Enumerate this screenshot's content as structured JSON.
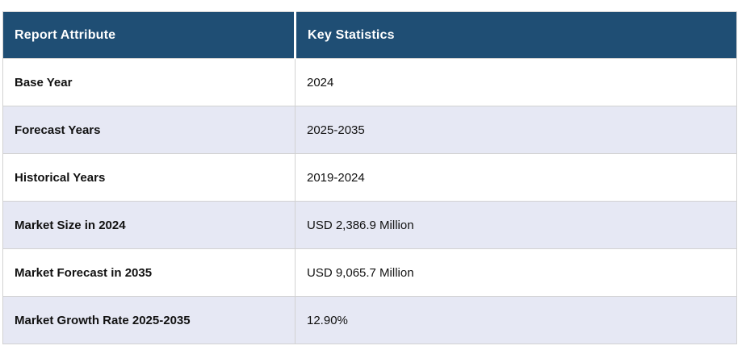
{
  "theme": {
    "header_bg": "#1f4e74",
    "header_text": "#ffffff",
    "header_divider": "#ffffff",
    "stripe_bg": "#e6e8f4",
    "row_bg": "#ffffff",
    "border_color": "#d2d2d2",
    "text_color": "#111111"
  },
  "chart_data": {
    "type": "table",
    "columns": [
      "Report Attribute",
      "Key Statistics"
    ],
    "rows": [
      [
        "Base Year",
        "2024"
      ],
      [
        "Forecast Years",
        "2025-2035"
      ],
      [
        "Historical Years",
        "2019-2024"
      ],
      [
        "Market Size in 2024",
        "USD 2,386.9 Million"
      ],
      [
        "Market Forecast in 2035",
        "USD 9,065.7 Million"
      ],
      [
        "Market Growth Rate 2025-2035",
        "12.90%"
      ]
    ]
  }
}
